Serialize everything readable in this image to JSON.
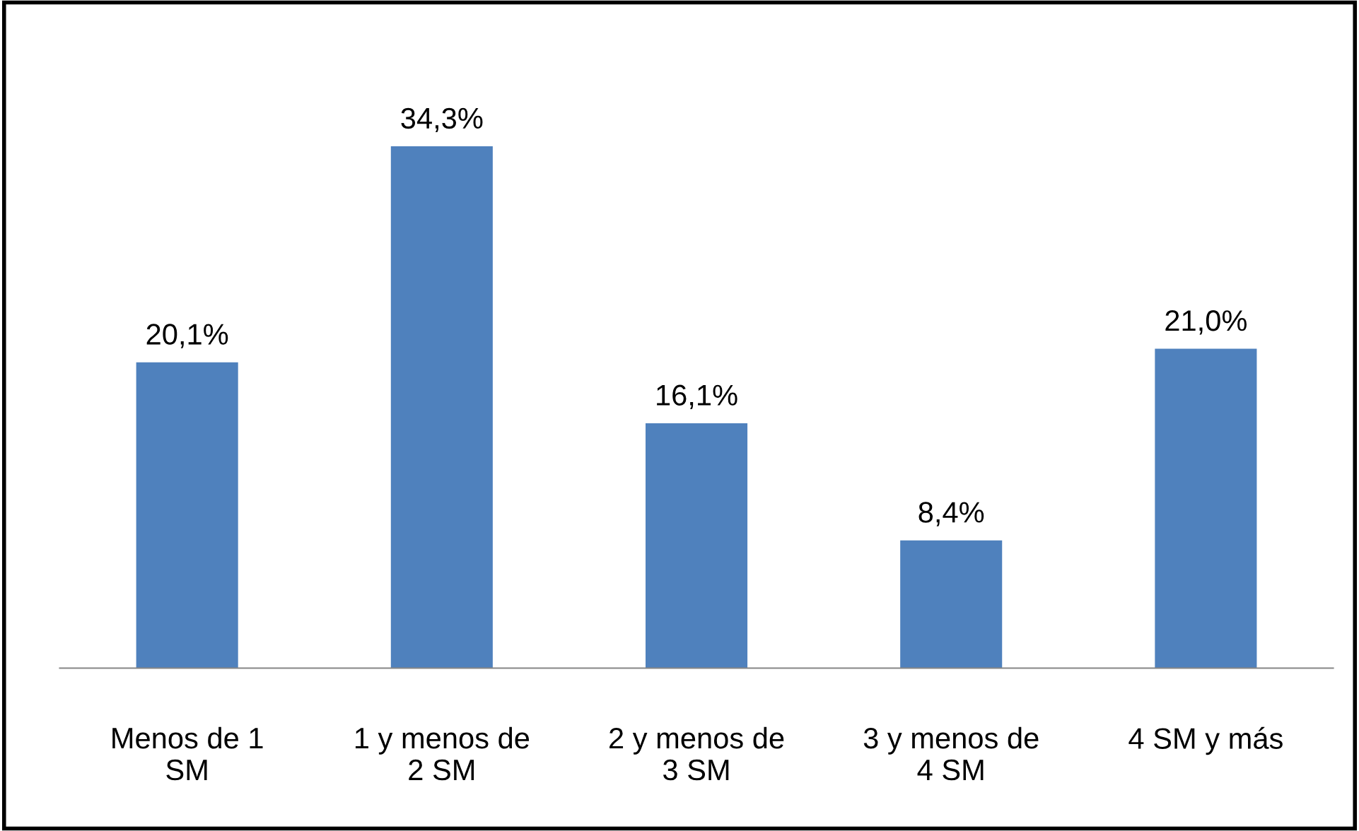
{
  "chart_data": {
    "type": "bar",
    "categories": [
      "Menos de 1\nSM",
      "1 y menos de\n2 SM",
      "2 y menos de\n3 SM",
      "3 y menos de\n4 SM",
      "4 SM y más"
    ],
    "values": [
      20.1,
      34.3,
      16.1,
      8.4,
      21.0
    ],
    "value_labels": [
      "20,1%",
      "34,3%",
      "16,1%",
      "8,4%",
      "21,0%"
    ],
    "color": "#4f81bd",
    "grid": false,
    "legend": false
  }
}
